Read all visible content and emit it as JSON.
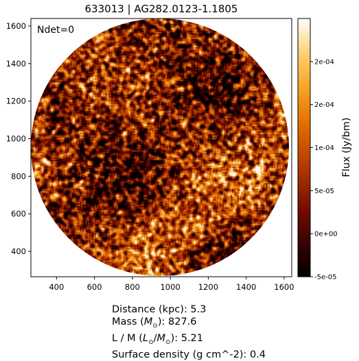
{
  "figure": {
    "title": "633013 | AG282.0123-1.1805",
    "annotation": "Ndet=0"
  },
  "axes": {
    "x_ticks": [
      "400",
      "600",
      "800",
      "1000",
      "1200",
      "1400",
      "1600"
    ],
    "y_ticks": [
      "400",
      "600",
      "800",
      "1000",
      "1200",
      "1400",
      "1600"
    ],
    "x_range": [
      265,
      1640
    ],
    "y_range": [
      265,
      1640
    ]
  },
  "colorbar": {
    "label": "Flux (Jy/bm)",
    "tick_labels": [
      "2e-04",
      "2e-04",
      "1e-04",
      "5e-05",
      "0e+00",
      "-5e-05"
    ],
    "tick_values": [
      0.0002,
      0.00015,
      0.0001,
      5e-05,
      0.0,
      -5e-05
    ],
    "range": [
      -5e-05,
      0.00025
    ],
    "colormap": "afmhot"
  },
  "info": {
    "distance_label": "Distance (kpc): ",
    "distance_value": "5.3",
    "mass_label": "Mass (",
    "mass_unit": "M",
    "mass_sub": "⊙",
    "mass_suffix": "): ",
    "mass_value": "827.6",
    "lm_label": "L / M (",
    "lm_unit_l": "L",
    "lm_sub_l": "⊙",
    "lm_slash": "/",
    "lm_unit_m": "M",
    "lm_sub_m": "⊙",
    "lm_suffix": "): ",
    "lm_value": "5.21",
    "surface_label": "Surface density (g cm^-2): ",
    "surface_value": "0.4"
  },
  "colors": {
    "cmap_stops": [
      "#000000",
      "#3a0000",
      "#7a0d00",
      "#b83c00",
      "#e07000",
      "#f5a623",
      "#ffd27a",
      "#ffffff"
    ]
  }
}
